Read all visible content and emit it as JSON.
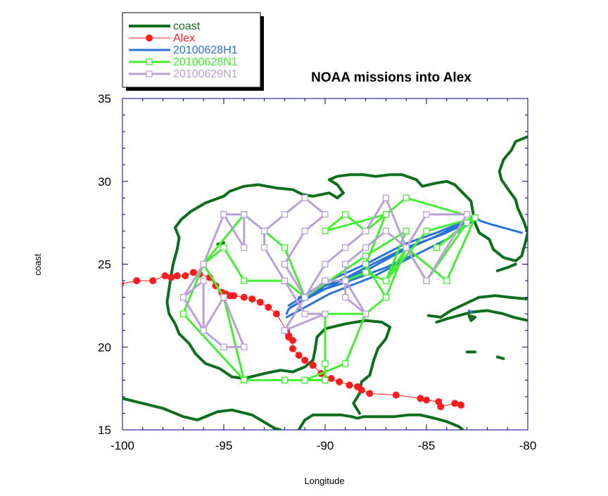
{
  "chart_data": {
    "type": "line",
    "title": "NOAA missions into Alex",
    "xlabel": "Longitude",
    "ylabel": "coast",
    "xlim": [
      -100,
      -80
    ],
    "ylim": [
      15,
      35
    ],
    "x_ticks": [
      -100,
      -95,
      -90,
      -85,
      -80
    ],
    "y_ticks": [
      15,
      20,
      25,
      30,
      35
    ],
    "x_tick_labels": [
      "-100",
      "-95",
      "-90",
      "-85",
      "-80"
    ],
    "y_tick_labels": [
      "15",
      "20",
      "25",
      "30",
      "35"
    ],
    "grid": false,
    "legend_position": "top-left",
    "series": [
      {
        "name": "coast",
        "color": "#0f6e1e",
        "style": "thick-line",
        "segments": [
          [
            [
              -100,
              16.9
            ],
            [
              -99,
              16.6
            ],
            [
              -98,
              16.3
            ],
            [
              -97,
              15.8
            ],
            [
              -96.3,
              15.6
            ],
            [
              -95.3,
              16.1
            ],
            [
              -94.6,
              16.2
            ],
            [
              -93.6,
              15.9
            ],
            [
              -92.5,
              15.1
            ],
            [
              -92.2,
              15.0
            ]
          ],
          [
            [
              -91.3,
              15.0
            ],
            [
              -91,
              15.6
            ],
            [
              -90.6,
              15.9
            ],
            [
              -89.7,
              15.9
            ],
            [
              -89.2,
              15.9
            ],
            [
              -88.7,
              15.8
            ],
            [
              -88.4,
              15.7
            ],
            [
              -88.1,
              15.8
            ],
            [
              -87.4,
              15.8
            ],
            [
              -86.6,
              15.8
            ],
            [
              -85.9,
              15.9
            ],
            [
              -85.3,
              15.9
            ],
            [
              -84.6,
              15.7
            ],
            [
              -84,
              15.5
            ],
            [
              -83.4,
              15.2
            ],
            [
              -83.2,
              15.0
            ]
          ],
          [
            [
              -88.3,
              16.0
            ],
            [
              -88.6,
              16.6
            ],
            [
              -88.3,
              17.2
            ],
            [
              -88.2,
              17.9
            ],
            [
              -87.8,
              18.3
            ],
            [
              -87.6,
              19.2
            ],
            [
              -87.4,
              19.9
            ],
            [
              -87.0,
              20.5
            ],
            [
              -86.8,
              21.2
            ],
            [
              -87.2,
              21.5
            ],
            [
              -88.0,
              21.6
            ],
            [
              -89.0,
              21.4
            ],
            [
              -90.0,
              21.1
            ],
            [
              -90.4,
              20.6
            ],
            [
              -90.5,
              19.8
            ],
            [
              -90.6,
              19.2
            ],
            [
              -91.0,
              18.8
            ],
            [
              -91.6,
              18.5
            ],
            [
              -92.2,
              18.6
            ],
            [
              -93.0,
              18.4
            ],
            [
              -94.0,
              18.1
            ],
            [
              -94.6,
              18.2
            ],
            [
              -95.2,
              18.7
            ],
            [
              -95.9,
              19.0
            ],
            [
              -96.4,
              19.6
            ],
            [
              -96.7,
              20.2
            ],
            [
              -97.2,
              20.8
            ],
            [
              -97.4,
              21.4
            ],
            [
              -97.7,
              22.0
            ],
            [
              -97.8,
              22.7
            ],
            [
              -97.7,
              23.5
            ],
            [
              -97.6,
              24.3
            ],
            [
              -97.5,
              25.0
            ],
            [
              -97.3,
              25.9
            ],
            [
              -97.2,
              26.6
            ],
            [
              -97.4,
              27.2
            ],
            [
              -97.1,
              27.7
            ],
            [
              -96.6,
              28.2
            ],
            [
              -95.9,
              28.7
            ],
            [
              -95.0,
              29.1
            ],
            [
              -94.7,
              29.4
            ],
            [
              -94.0,
              29.7
            ],
            [
              -93.3,
              29.8
            ],
            [
              -92.4,
              29.6
            ],
            [
              -91.6,
              29.5
            ],
            [
              -91.1,
              29.2
            ],
            [
              -90.6,
              29.1
            ],
            [
              -90.2,
              29.2
            ],
            [
              -89.8,
              29.3
            ],
            [
              -89.4,
              29.0
            ],
            [
              -89.1,
              29.3
            ],
            [
              -89.4,
              29.8
            ],
            [
              -89.8,
              30.1
            ],
            [
              -89.4,
              30.3
            ],
            [
              -88.8,
              30.4
            ],
            [
              -88.1,
              30.4
            ],
            [
              -87.5,
              30.3
            ],
            [
              -86.8,
              30.4
            ],
            [
              -86.2,
              30.4
            ],
            [
              -85.5,
              30.1
            ],
            [
              -85.2,
              29.7
            ],
            [
              -84.5,
              29.9
            ],
            [
              -84.0,
              30.0
            ],
            [
              -83.6,
              29.8
            ],
            [
              -83.2,
              29.3
            ],
            [
              -82.8,
              28.8
            ],
            [
              -82.7,
              28.1
            ],
            [
              -82.6,
              27.5
            ],
            [
              -82.4,
              26.9
            ],
            [
              -81.9,
              26.5
            ],
            [
              -81.7,
              25.9
            ],
            [
              -81.2,
              25.4
            ],
            [
              -80.6,
              25.2
            ],
            [
              -80.3,
              25.5
            ],
            [
              -80.1,
              26.4
            ],
            [
              -80.0,
              26.9
            ],
            [
              -80.2,
              27.6
            ],
            [
              -80.5,
              28.4
            ],
            [
              -80.6,
              28.9
            ],
            [
              -80.9,
              29.4
            ],
            [
              -81.3,
              30.1
            ],
            [
              -81.4,
              30.6
            ],
            [
              -81.2,
              31.3
            ],
            [
              -80.8,
              31.9
            ],
            [
              -80.6,
              32.4
            ],
            [
              -80.0,
              32.7
            ]
          ],
          [
            [
              -84.9,
              21.9
            ],
            [
              -84.3,
              21.8
            ],
            [
              -83.8,
              22.2
            ],
            [
              -83.1,
              22.6
            ],
            [
              -82.4,
              23.0
            ],
            [
              -81.6,
              23.1
            ],
            [
              -80.9,
              23.0
            ],
            [
              -80.0,
              22.9
            ]
          ],
          [
            [
              -84.5,
              21.5
            ],
            [
              -84.0,
              21.7
            ],
            [
              -83.4,
              21.9
            ],
            [
              -82.8,
              22.1
            ],
            [
              -82.0,
              22.2
            ],
            [
              -81.2,
              22.0
            ],
            [
              -80.7,
              21.8
            ],
            [
              -80.0,
              21.6
            ]
          ],
          [
            [
              -82.8,
              21.6
            ],
            [
              -82.6,
              21.8
            ],
            [
              -82.9,
              21.9
            ],
            [
              -82.8,
              21.6
            ]
          ],
          [
            [
              -81.5,
              24.6
            ],
            [
              -81.0,
              24.8
            ],
            [
              -80.6,
              25.0
            ]
          ],
          [
            [
              -83.0,
              19.7
            ],
            [
              -82.6,
              19.7
            ]
          ],
          [
            [
              -81.2,
              19.3
            ],
            [
              -81.5,
              19.4
            ]
          ],
          [
            [
              -95.0,
              26.3
            ],
            [
              -95.3,
              26.2
            ]
          ]
        ]
      },
      {
        "name": "Alex",
        "color": "#ff1c1c",
        "style": "line-circle",
        "x": [
          -83.3,
          -83.6,
          -84.3,
          -84.4,
          -85.0,
          -85.3,
          -86.5,
          -87.8,
          -88.2,
          -88.4,
          -88.8,
          -89.3,
          -89.7,
          -90.2,
          -90.6,
          -91.0,
          -91.3,
          -91.6,
          -91.6,
          -91.8,
          -91.8,
          -91.9,
          -92.4,
          -92.8,
          -93.2,
          -93.6,
          -94.0,
          -94.5,
          -94.7,
          -94.9,
          -95.1,
          -95.4,
          -95.7,
          -96.2,
          -96.5,
          -96.9,
          -97.3,
          -97.6,
          -97.9,
          -98.5,
          -99.3,
          -100.1
        ],
        "y": [
          16.5,
          16.6,
          16.4,
          16.7,
          16.8,
          16.9,
          17.1,
          17.2,
          17.4,
          17.6,
          17.7,
          17.9,
          18.1,
          18.4,
          18.9,
          19.2,
          19.5,
          19.9,
          20.4,
          20.6,
          20.7,
          21.0,
          22.0,
          22.4,
          22.7,
          22.9,
          23.0,
          23.1,
          23.1,
          23.2,
          23.3,
          23.7,
          24.2,
          24.4,
          24.5,
          24.3,
          24.3,
          24.2,
          24.3,
          24.0,
          24.0,
          23.8
        ]
      },
      {
        "name": "20100628H1",
        "color": "#2a72d6",
        "style": "line",
        "segments": [
          [
            [
              -91.9,
              22.0
            ],
            [
              -91.8,
              22.3
            ],
            [
              -90.0,
              23.7
            ],
            [
              -88.0,
              24.6
            ],
            [
              -86.2,
              25.8
            ],
            [
              -84.5,
              26.7
            ],
            [
              -82.7,
              27.8
            ],
            [
              -84.5,
              26.9
            ],
            [
              -86.1,
              26.2
            ],
            [
              -88.0,
              25.0
            ],
            [
              -90.0,
              23.9
            ],
            [
              -91.8,
              22.5
            ]
          ],
          [
            [
              -91.9,
              21.8
            ],
            [
              -89.8,
              23.2
            ],
            [
              -87.7,
              24.2
            ],
            [
              -85.8,
              25.4
            ],
            [
              -84.0,
              26.5
            ],
            [
              -82.6,
              27.7
            ],
            [
              -84.2,
              26.8
            ],
            [
              -86.0,
              26.0
            ],
            [
              -88.0,
              24.8
            ],
            [
              -90.0,
              23.5
            ],
            [
              -91.7,
              22.4
            ]
          ],
          [
            [
              -91.3,
              23.0
            ],
            [
              -89.0,
              23.9
            ],
            [
              -87.0,
              24.8
            ],
            [
              -85.6,
              25.6
            ]
          ],
          [
            [
              -82.6,
              27.8
            ],
            [
              -82.3,
              27.6
            ],
            [
              -81.8,
              27.4
            ],
            [
              -81.2,
              27.2
            ],
            [
              -80.6,
              27.0
            ],
            [
              -80.3,
              26.9
            ]
          ],
          [
            [
              -82.9,
              22.2
            ],
            [
              -82.8,
              22.1
            ]
          ]
        ]
      },
      {
        "name": "20100628N1",
        "color": "#44ee33",
        "style": "line-square",
        "x": [
          -82.6,
          -85.0,
          -87.0,
          -86.0,
          -85.0,
          -83.0,
          -84.5,
          -82.6,
          -86.0,
          -88.0,
          -89.0,
          -90.0,
          -87.0,
          -88.0,
          -87.0,
          -88.0,
          -90.0,
          -90.0,
          -90.0,
          -91.0,
          -92.0,
          -94.0,
          -97.0,
          -96.0,
          -95.0,
          -94.0,
          -92.0,
          -91.0,
          -90.0,
          -89.0,
          -88.0,
          -87.0,
          -86.0,
          -88.0,
          -91.0,
          -91.0,
          -92.0,
          -93.0,
          -94.0,
          -96.0,
          -95.0,
          -94.0,
          -92.0,
          -91.0,
          -89.0,
          -88.0,
          -87.0,
          -86.0,
          -84.0,
          -82.6
        ],
        "y": [
          27.8,
          27.0,
          24.0,
          26.0,
          24.0,
          27.5,
          26.0,
          27.8,
          29.0,
          27.0,
          28.0,
          27.0,
          28.0,
          25.0,
          23.0,
          22.0,
          22.0,
          19.0,
          18.0,
          18.0,
          18.0,
          18.0,
          22.0,
          25.0,
          26.0,
          24.0,
          24.0,
          23.0,
          24.0,
          24.0,
          24.5,
          24.0,
          27.0,
          25.5,
          23.0,
          23.0,
          26.0,
          27.0,
          28.0,
          25.0,
          23.0,
          18.0,
          18.0,
          18.0,
          19.0,
          22.0,
          23.0,
          26.0,
          24.0,
          27.8
        ]
      },
      {
        "name": "20100629N1",
        "color": "#b9a0d8",
        "style": "line-square",
        "x": [
          -92.0,
          -90.0,
          -91.0,
          -92.0,
          -93.0,
          -93.0,
          -94.0,
          -94.0,
          -95.0,
          -96.0,
          -97.0,
          -96.0,
          -96.0,
          -95.0,
          -94.0,
          -95.0,
          -96.0,
          -97.0,
          -96.0,
          -95.0,
          -94.0,
          -93.0,
          -92.0,
          -91.0,
          -90.0,
          -91.0,
          -92.0,
          -91.0,
          -90.0,
          -89.0,
          -88.0,
          -89.0,
          -89.0,
          -88.0,
          -87.0,
          -86.0,
          -85.0,
          -83.0,
          -85.0,
          -86.0,
          -87.0,
          -88.0,
          -89.0,
          -90.0,
          -91.0,
          -92.0
        ],
        "y": [
          21.0,
          22.0,
          22.0,
          24.0,
          26.0,
          27.0,
          28.0,
          26.0,
          28.0,
          25.0,
          23.0,
          24.0,
          21.0,
          23.0,
          20.0,
          20.0,
          21.0,
          23.0,
          25.0,
          28.0,
          28.0,
          27.0,
          28.0,
          29.0,
          28.0,
          27.0,
          25.0,
          23.0,
          24.0,
          24.0,
          22.0,
          23.0,
          25.0,
          26.0,
          27.0,
          26.0,
          24.0,
          28.0,
          28.0,
          26.0,
          29.0,
          27.0,
          26.0,
          25.0,
          23.0,
          21.0
        ]
      }
    ],
    "legend": [
      "coast",
      "Alex",
      "20100628H1",
      "20100628N1",
      "20100629N1"
    ]
  }
}
